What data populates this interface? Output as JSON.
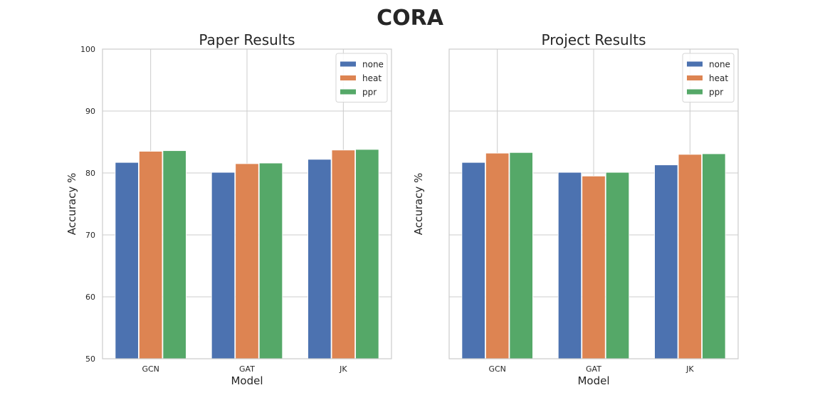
{
  "figure": {
    "title": "CORA"
  },
  "chart_data": [
    {
      "type": "bar",
      "title": "Paper Results",
      "xlabel": "Model",
      "ylabel": "Accuracy %",
      "ylim": [
        50,
        100
      ],
      "yticks": [
        50,
        60,
        70,
        80,
        90,
        100
      ],
      "show_ytick_labels": true,
      "grid": true,
      "legend_position": "top-right",
      "categories": [
        "GCN",
        "GAT",
        "JK"
      ],
      "series": [
        {
          "name": "none",
          "color": "#4c72b0",
          "values": [
            81.7,
            80.1,
            82.2
          ]
        },
        {
          "name": "heat",
          "color": "#dd8452",
          "values": [
            83.5,
            81.5,
            83.7
          ]
        },
        {
          "name": "ppr",
          "color": "#55a868",
          "values": [
            83.6,
            81.6,
            83.8
          ]
        }
      ]
    },
    {
      "type": "bar",
      "title": "Project Results",
      "xlabel": "Model",
      "ylabel": "Accuracy %",
      "ylim": [
        50,
        100
      ],
      "yticks": [
        50,
        60,
        70,
        80,
        90,
        100
      ],
      "show_ytick_labels": false,
      "grid": true,
      "legend_position": "top-right",
      "categories": [
        "GCN",
        "GAT",
        "JK"
      ],
      "series": [
        {
          "name": "none",
          "color": "#4c72b0",
          "values": [
            81.7,
            80.1,
            81.3
          ]
        },
        {
          "name": "heat",
          "color": "#dd8452",
          "values": [
            83.2,
            79.5,
            83.0
          ]
        },
        {
          "name": "ppr",
          "color": "#55a868",
          "values": [
            83.3,
            80.1,
            83.1
          ]
        }
      ]
    }
  ]
}
